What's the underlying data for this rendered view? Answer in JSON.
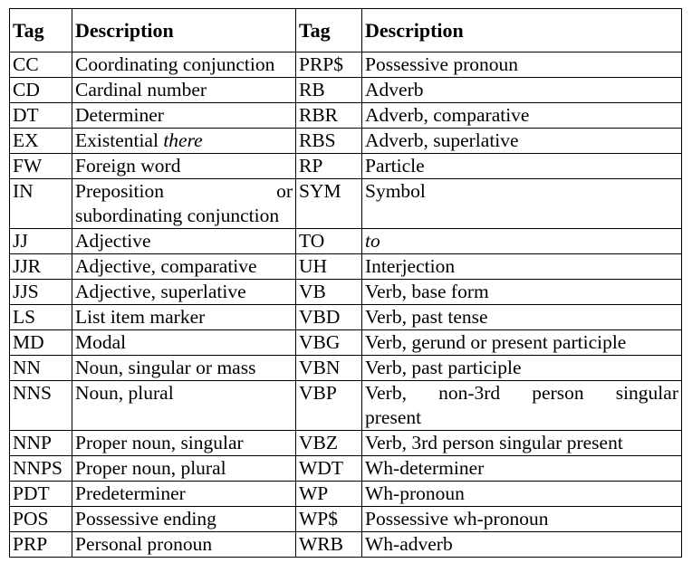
{
  "header": {
    "tag": "Tag",
    "description": "Description",
    "tag2": "Tag",
    "description2": "Description"
  },
  "rows": [
    {
      "tag": "CC",
      "desc": "Coordinating conjunction",
      "tag2": "PRP$",
      "desc2": "Possessive pronoun"
    },
    {
      "tag": "CD",
      "desc": "Cardinal number",
      "tag2": "RB",
      "desc2": "Adverb"
    },
    {
      "tag": "DT",
      "desc": "Determiner",
      "tag2": "RBR",
      "desc2": "Adverb, comparative"
    },
    {
      "tag": "EX",
      "desc": "Existential ",
      "desc_italic": "there",
      "tag2": "RBS",
      "desc2": "Adverb, superlative"
    },
    {
      "tag": "FW",
      "desc": "Foreign word",
      "tag2": "RP",
      "desc2": "Particle"
    },
    {
      "tag": "IN",
      "desc_line1": "Preposition or",
      "desc_line2": "subordinating conjunction",
      "tag2": "SYM",
      "desc2": "Symbol"
    },
    {
      "tag": "JJ",
      "desc": "Adjective",
      "tag2": "TO",
      "desc2_italic": "to"
    },
    {
      "tag": "JJR",
      "desc": "Adjective, comparative",
      "tag2": "UH",
      "desc2": "Interjection"
    },
    {
      "tag": "JJS",
      "desc": "Adjective, superlative",
      "tag2": "VB",
      "desc2": "Verb, base form"
    },
    {
      "tag": "LS",
      "desc": "List item marker",
      "tag2": "VBD",
      "desc2": "Verb, past tense"
    },
    {
      "tag": "MD",
      "desc": "Modal",
      "tag2": "VBG",
      "desc2": "Verb, gerund or present participle"
    },
    {
      "tag": "NN",
      "desc": "Noun, singular or mass",
      "tag2": "VBN",
      "desc2": "Verb, past participle"
    },
    {
      "tag": "NNS",
      "desc": "Noun, plural",
      "tag2": "VBP",
      "desc2_line1": "Verb, non-3rd person singular",
      "desc2_line2": "present"
    },
    {
      "tag": "NNP",
      "desc": "Proper noun, singular",
      "tag2": "VBZ",
      "desc2": "Verb, 3rd person singular present"
    },
    {
      "tag": "NNPS",
      "desc": "Proper noun, plural",
      "tag2": "WDT",
      "desc2": "Wh-determiner"
    },
    {
      "tag": "PDT",
      "desc": "Predeterminer",
      "tag2": "WP",
      "desc2": "Wh-pronoun"
    },
    {
      "tag": "POS",
      "desc": "Possessive ending",
      "tag2": "WP$",
      "desc2": "Possessive wh-pronoun"
    },
    {
      "tag": "PRP",
      "desc": "Personal pronoun",
      "tag2": "WRB",
      "desc2": "Wh-adverb"
    }
  ]
}
